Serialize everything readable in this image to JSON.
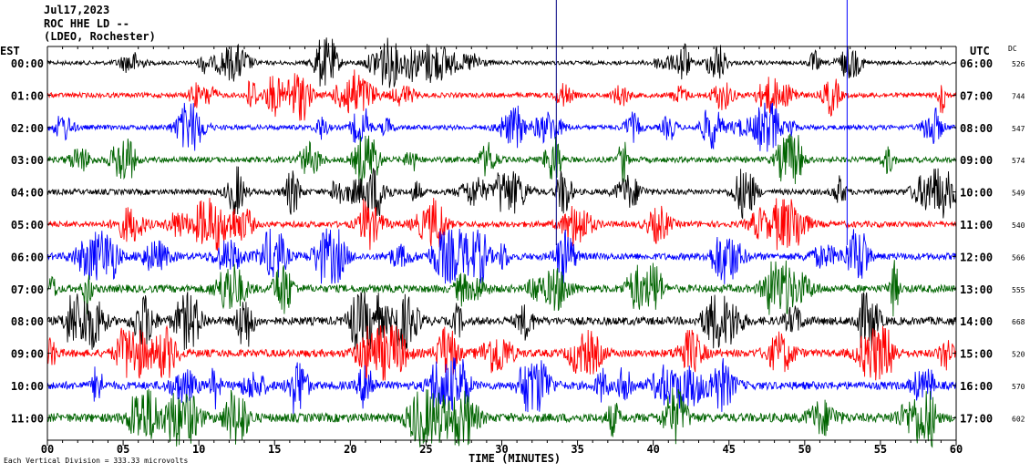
{
  "header": {
    "date": "Jul17,2023",
    "station": "ROC HHE LD --",
    "network": "(LDEO, Rochester)"
  },
  "left_timezone": "EST",
  "right_timezone": "UTC",
  "dc_label": "DC",
  "footnote": "Each Vertical Division =  333.33 microvolts",
  "chart_data": {
    "type": "line",
    "title": "",
    "xlabel": "TIME (MINUTES)",
    "xlim": [
      0,
      60
    ],
    "x_ticks": [
      "00",
      "05",
      "10",
      "15",
      "20",
      "25",
      "30",
      "35",
      "40",
      "45",
      "50",
      "55",
      "60"
    ],
    "row_colors": [
      "#000000",
      "#ff0000",
      "#0000ff",
      "#006400"
    ],
    "rows": [
      {
        "est": "00:00",
        "utc": "06:00",
        "dc": "526",
        "color": "#000000",
        "amplitude": 1.0
      },
      {
        "est": "01:00",
        "utc": "07:00",
        "dc": "744",
        "color": "#ff0000",
        "amplitude": 1.2
      },
      {
        "est": "02:00",
        "utc": "08:00",
        "dc": "547",
        "color": "#0000ff",
        "amplitude": 1.2
      },
      {
        "est": "03:00",
        "utc": "09:00",
        "dc": "574",
        "color": "#006400",
        "amplitude": 1.4
      },
      {
        "est": "04:00",
        "utc": "10:00",
        "dc": "549",
        "color": "#000000",
        "amplitude": 1.4
      },
      {
        "est": "05:00",
        "utc": "11:00",
        "dc": "540",
        "color": "#ff0000",
        "amplitude": 1.5
      },
      {
        "est": "06:00",
        "utc": "12:00",
        "dc": "566",
        "color": "#0000ff",
        "amplitude": 1.7
      },
      {
        "est": "07:00",
        "utc": "13:00",
        "dc": "555",
        "color": "#006400",
        "amplitude": 1.9
      },
      {
        "est": "08:00",
        "utc": "14:00",
        "dc": "668",
        "color": "#000000",
        "amplitude": 2.0
      },
      {
        "est": "09:00",
        "utc": "15:00",
        "dc": "520",
        "color": "#ff0000",
        "amplitude": 1.9
      },
      {
        "est": "10:00",
        "utc": "16:00",
        "dc": "570",
        "color": "#0000ff",
        "amplitude": 2.0
      },
      {
        "est": "11:00",
        "utc": "17:00",
        "dc": "602",
        "color": "#006400",
        "amplitude": 2.2
      }
    ],
    "spikes": [
      {
        "minute": 33.6,
        "row": 0,
        "color": "#000080"
      },
      {
        "minute": 52.8,
        "row": 0,
        "color": "#0000ff"
      }
    ],
    "grid": false
  }
}
